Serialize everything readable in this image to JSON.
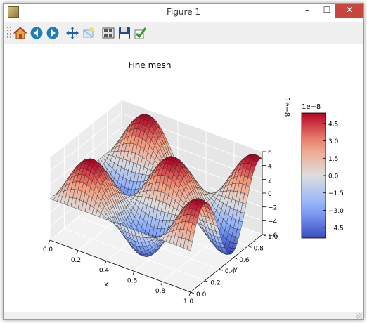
{
  "window": {
    "title": "Figure 1",
    "minimize": "–",
    "maximize": "☐",
    "close": "✕"
  },
  "toolbar": {
    "buttons": [
      {
        "name": "home-icon",
        "color": "#c0392b"
      },
      {
        "name": "back-icon",
        "color": "#1e7fb8"
      },
      {
        "name": "forward-icon",
        "color": "#1e7fb8"
      },
      {
        "name": "pan-icon",
        "color": "#1e5fa8"
      },
      {
        "name": "zoom-icon",
        "color": "#7aa7d8"
      },
      {
        "name": "subplots-icon",
        "color": "#555555"
      },
      {
        "name": "save-icon",
        "color": "#1f4e8c"
      },
      {
        "name": "check-icon",
        "color": "#2aa12a"
      }
    ]
  },
  "chart_data": {
    "type": "surface",
    "title": "Fine mesh",
    "xlabel": "x",
    "ylabel": "y",
    "zlabel": "",
    "x_ticks": [
      "0.0",
      "0.2",
      "0.4",
      "0.6",
      "0.8",
      "1.0"
    ],
    "y_ticks": [
      "0.0",
      "0.2",
      "0.4",
      "0.6",
      "0.8",
      "1.0"
    ],
    "z_ticks": [
      "6",
      "4",
      "2",
      "0",
      "−2",
      "−4",
      "−6"
    ],
    "z_offset": "1e−8",
    "xlim": [
      0,
      1
    ],
    "ylim": [
      0,
      1
    ],
    "zlim": [
      -6e-08,
      6e-08
    ],
    "colormap": "coolwarm",
    "colorbar": {
      "offset": "1e−8",
      "ticks": [
        "4.5",
        "3.0",
        "1.5",
        "0.0",
        "−1.5",
        "−3.0",
        "−4.5"
      ],
      "range": [
        -5.4e-08,
        5.4e-08
      ]
    }
  }
}
